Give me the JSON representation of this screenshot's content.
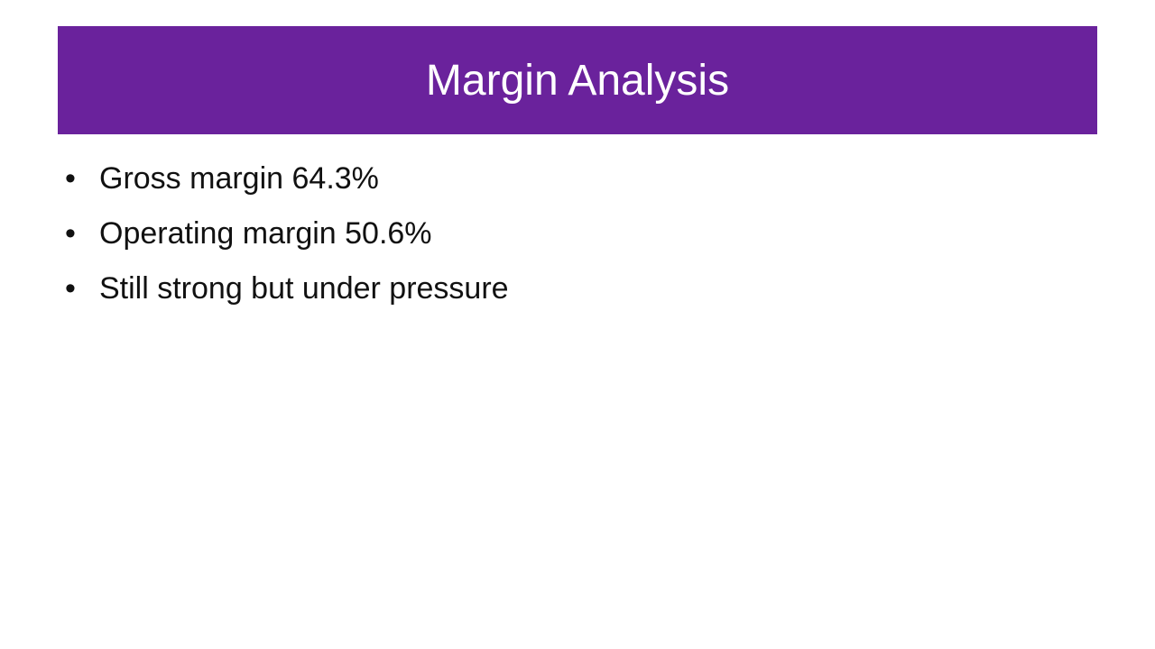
{
  "slide": {
    "title": "Margin Analysis",
    "bullets": [
      "Gross margin 64.3%",
      "Operating margin 50.6%",
      "Still strong but under pressure"
    ]
  }
}
